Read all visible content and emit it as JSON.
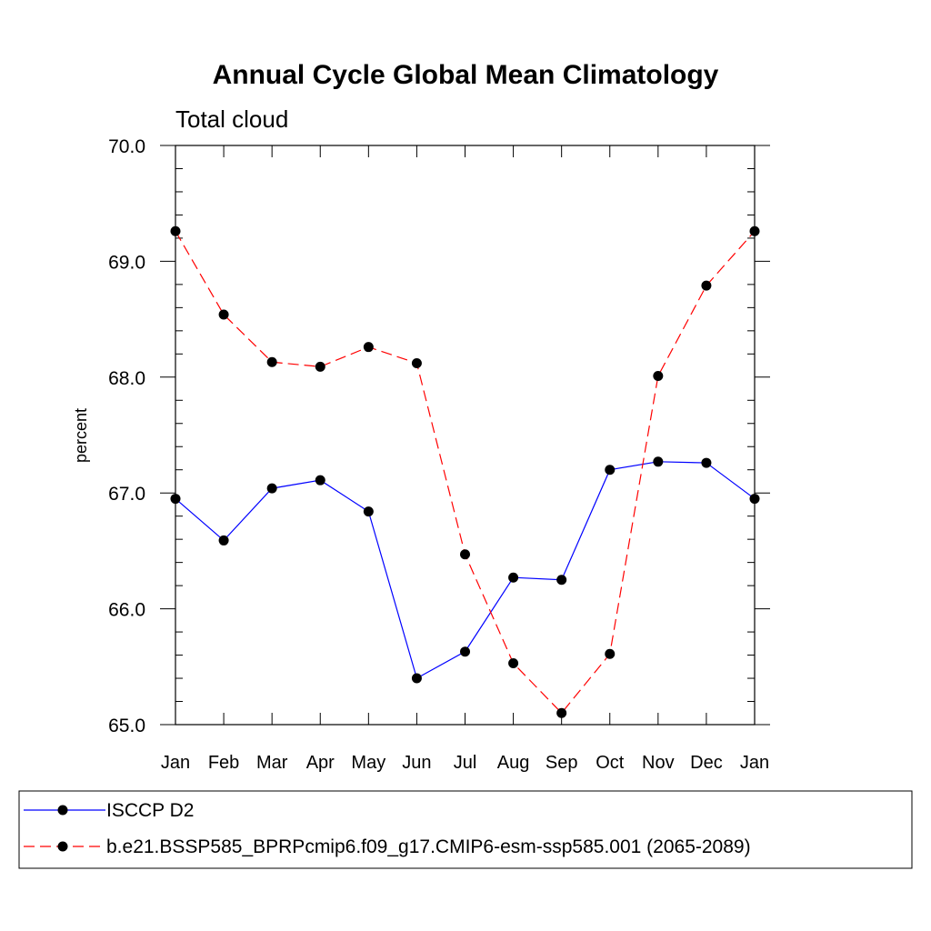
{
  "chart_data": {
    "type": "line",
    "title": "Annual Cycle Global Mean Climatology",
    "subtitle": "Total cloud",
    "xlabel": "",
    "ylabel": "percent",
    "ylim": [
      65.0,
      70.0
    ],
    "yticks": [
      "65.0",
      "66.0",
      "67.0",
      "68.0",
      "69.0",
      "70.0"
    ],
    "categories": [
      "Jan",
      "Feb",
      "Mar",
      "Apr",
      "May",
      "Jun",
      "Jul",
      "Aug",
      "Sep",
      "Oct",
      "Nov",
      "Dec",
      "Jan"
    ],
    "series": [
      {
        "name": "ISCCP D2",
        "color": "#0000ff",
        "style": "solid",
        "values": [
          66.95,
          66.59,
          67.04,
          67.11,
          66.84,
          65.4,
          65.63,
          66.27,
          66.25,
          67.2,
          67.27,
          67.26,
          66.95
        ]
      },
      {
        "name": "b.e21.BSSP585_BPRPcmip6.f09_g17.CMIP6-esm-ssp585.001 (2065-2089)",
        "color": "#ff0000",
        "style": "dashed",
        "values": [
          69.26,
          68.54,
          68.13,
          68.09,
          68.26,
          68.12,
          66.47,
          65.53,
          65.1,
          65.61,
          68.01,
          68.79,
          69.26
        ]
      }
    ],
    "grid": false,
    "legend_position": "bottom"
  }
}
